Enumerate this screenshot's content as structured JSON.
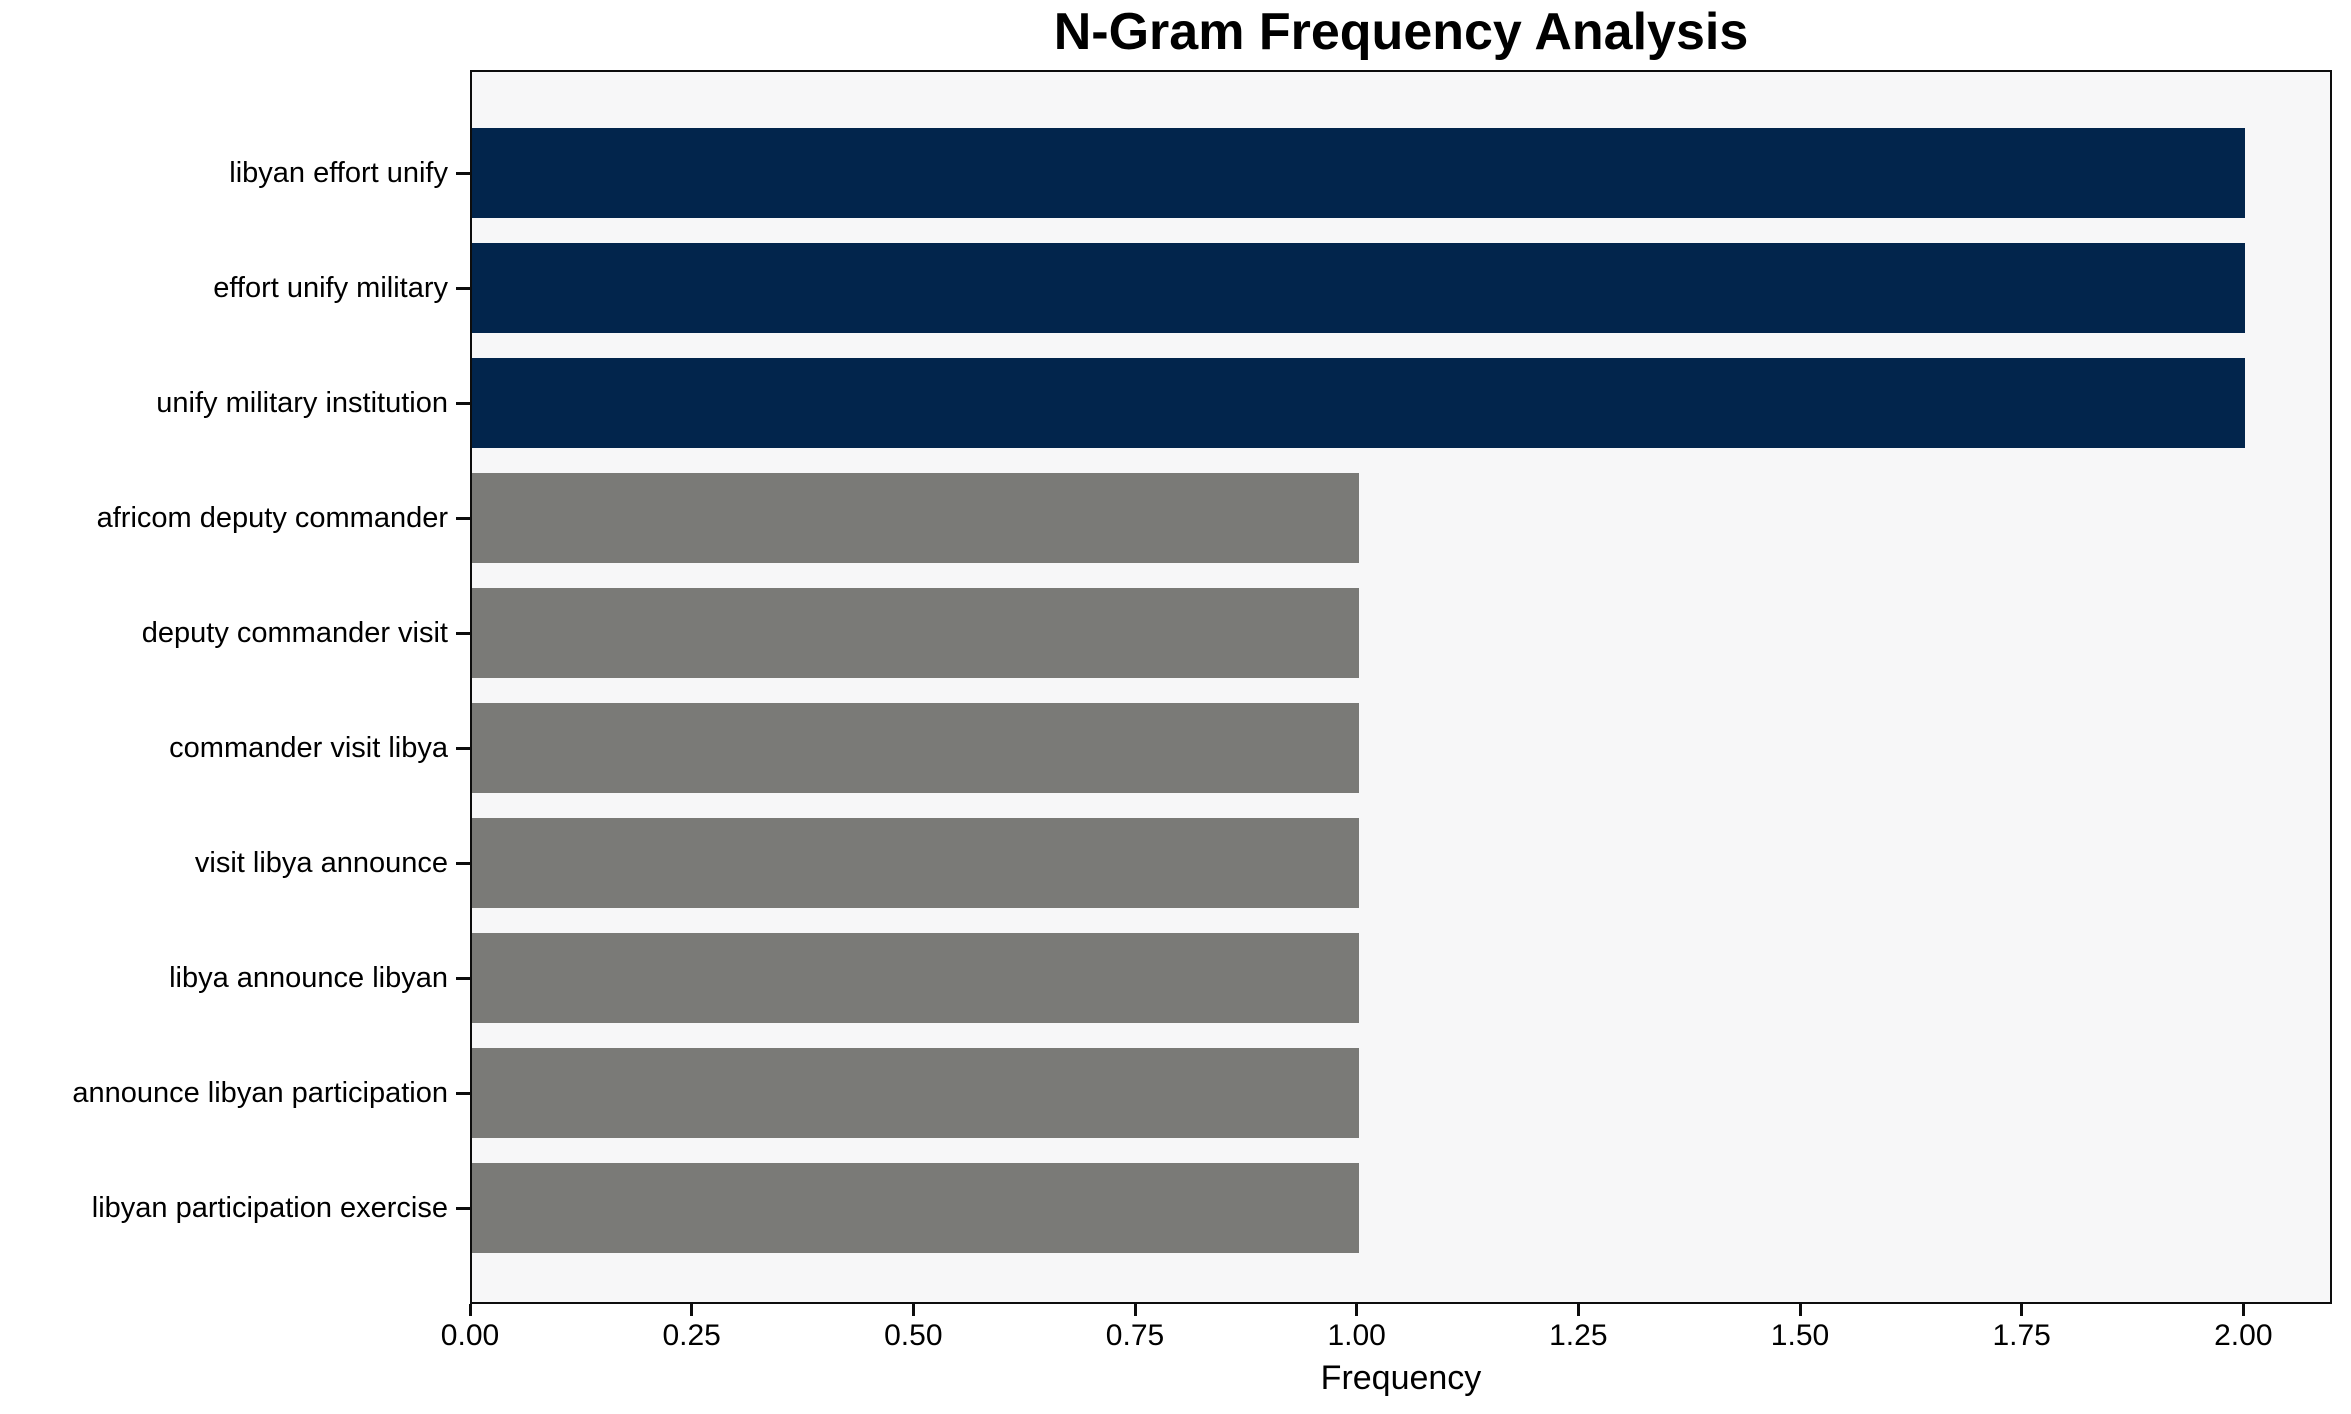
{
  "chart_data": {
    "type": "bar",
    "orientation": "horizontal",
    "title": "N-Gram Frequency Analysis",
    "xlabel": "Frequency",
    "ylabel": "",
    "categories": [
      "libyan effort unify",
      "effort unify military",
      "unify military institution",
      "africom deputy commander",
      "deputy commander visit",
      "commander visit libya",
      "visit libya announce",
      "libya announce libyan",
      "announce libyan participation",
      "libyan participation exercise"
    ],
    "values": [
      2,
      2,
      2,
      1,
      1,
      1,
      1,
      1,
      1,
      1
    ],
    "bar_colors": [
      "#02254c",
      "#02254c",
      "#02254c",
      "#7a7a77",
      "#7a7a77",
      "#7a7a77",
      "#7a7a77",
      "#7a7a77",
      "#7a7a77",
      "#7a7a77"
    ],
    "xticks": [
      "0.00",
      "0.25",
      "0.50",
      "0.75",
      "1.00",
      "1.25",
      "1.50",
      "1.75",
      "2.00"
    ],
    "xtick_values": [
      0,
      0.25,
      0.5,
      0.75,
      1,
      1.25,
      1.5,
      1.75,
      2
    ],
    "xlim": [
      0,
      2.1
    ],
    "grid": false,
    "legend": null,
    "colors": {
      "highlight_bar": "#02254c",
      "default_bar": "#7a7a77",
      "plot_background": "#f7f7f8",
      "figure_background": "#ffffff",
      "spine": "#0d0d0d"
    }
  }
}
